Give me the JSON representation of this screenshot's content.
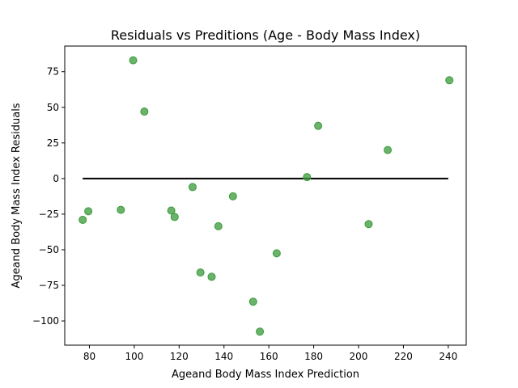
{
  "chart_data": {
    "type": "scatter",
    "title": "Residuals vs Preditions (Age - Body Mass Index)",
    "xlabel": "Ageand Body Mass Index Prediction",
    "ylabel": "Ageand Body Mass Index Residuals",
    "xlim": [
      69,
      248
    ],
    "ylim": [
      -117,
      93
    ],
    "xticks": [
      80,
      100,
      120,
      140,
      160,
      180,
      200,
      220,
      240
    ],
    "yticks": [
      75,
      50,
      25,
      0,
      -25,
      -50,
      -75,
      -100
    ],
    "ytick_labels": [
      "75",
      "50",
      "25",
      "0",
      "−25",
      "−50",
      "−75",
      "−100"
    ],
    "reference_line": {
      "y": 0,
      "x_start": 77,
      "x_end": 240,
      "color": "#000000"
    },
    "point_color": "#3a9a3a",
    "grid": false,
    "points": [
      {
        "x": 77,
        "y": -29
      },
      {
        "x": 79.5,
        "y": -23
      },
      {
        "x": 94,
        "y": -22
      },
      {
        "x": 99.5,
        "y": 83
      },
      {
        "x": 104.5,
        "y": 47
      },
      {
        "x": 116.5,
        "y": -22.5
      },
      {
        "x": 118,
        "y": -27
      },
      {
        "x": 126,
        "y": -6
      },
      {
        "x": 129.5,
        "y": -66
      },
      {
        "x": 134.5,
        "y": -69
      },
      {
        "x": 137.5,
        "y": -33.5
      },
      {
        "x": 144,
        "y": -12.5
      },
      {
        "x": 153,
        "y": -86.5
      },
      {
        "x": 156,
        "y": -107.5
      },
      {
        "x": 163.5,
        "y": -52.5
      },
      {
        "x": 177,
        "y": 1
      },
      {
        "x": 182,
        "y": 37
      },
      {
        "x": 204.5,
        "y": -32
      },
      {
        "x": 213,
        "y": 20
      },
      {
        "x": 240.5,
        "y": 69
      }
    ]
  }
}
